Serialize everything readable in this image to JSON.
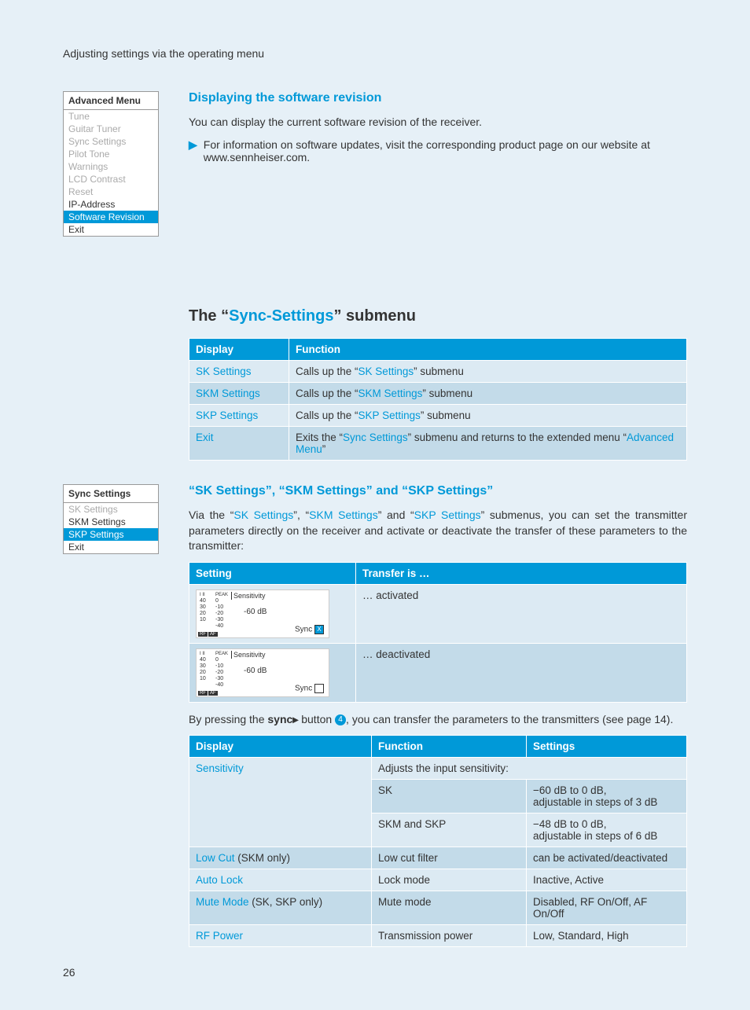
{
  "colors": {
    "page_bg": "#e6f0f7",
    "accent": "#0099d8",
    "row_odd": "#dceaf3",
    "row_even": "#c3dbe9",
    "text": "#333333",
    "muted": "#aaaaaa",
    "white": "#ffffff"
  },
  "header": {
    "title": "Adjusting settings via the operating menu"
  },
  "advanced_menu": {
    "title": "Advanced Menu",
    "items": [
      "Tune",
      "Guitar Tuner",
      "Sync Settings",
      "Pilot Tone",
      "Warnings",
      "LCD Contrast",
      "Reset",
      "IP-Address",
      "Software Revision",
      "Exit"
    ],
    "dim_end": 7,
    "highlight_index": 8
  },
  "software_rev": {
    "heading": "Displaying the software revision",
    "p1": "You can display the current software revision of the receiver.",
    "bullet": "For information on software updates, visit the corresponding product page on our website at www.sennheiser.com."
  },
  "sync_submenu": {
    "title_pre": "The “",
    "title_link": "Sync-Settings",
    "title_post": "” submenu",
    "th_display": "Display",
    "th_function": "Function",
    "rows": [
      {
        "display": "SK Settings",
        "func_pre": "Calls up the “",
        "func_link": "SK Settings",
        "func_post": "” submenu"
      },
      {
        "display": "SKM Settings",
        "func_pre": "Calls up the “",
        "func_link": "SKM Settings",
        "func_post": "” submenu"
      },
      {
        "display": "SKP Settings",
        "func_pre": "Calls up the “",
        "func_link": "SKP Settings",
        "func_post": "” submenu"
      },
      {
        "display": "Exit",
        "func_pre": "Exits the “",
        "func_link": "Sync Settings",
        "func_post": "” submenu and returns to the extended menu “",
        "func_link2": "Advanced Menu",
        "func_post2": "”"
      }
    ]
  },
  "sync_menu_box": {
    "title": "Sync Settings",
    "items": [
      "SK Settings",
      "SKM Settings",
      "SKP Settings",
      "Exit"
    ],
    "dim_end": 0,
    "highlight_index": 2
  },
  "sk_section": {
    "heading": "“SK Settings”, “SKM Settings” and “SKP Settings”",
    "p1_pre": "Via the “",
    "p1_l1": "SK Settings",
    "p1_m1": "”, “",
    "p1_l2": "SKM Settings",
    "p1_m2": "” and “",
    "p1_l3": "SKP Settings",
    "p1_post": "” submenus, you can set the transmitter parameters directly on the receiver and activate or deactivate the transfer of these parameters to the transmitter:"
  },
  "transfer_table": {
    "th_setting": "Setting",
    "th_transfer": "Transfer is …",
    "rows": [
      {
        "transfer": "… activated",
        "checked": true
      },
      {
        "transfer": "… deactivated",
        "checked": false
      }
    ]
  },
  "lcd": {
    "col1_top": "I  II",
    "col1": "40\n30\n20\n10",
    "col2_top": "PEAK",
    "col2": "0\n-10\n-20\n-30\n-40",
    "sens_label": "Sensitivity",
    "sens_val": "-60 dB",
    "sync_label": "Sync",
    "rf": "RF",
    "af": "AF"
  },
  "sync_button_text": {
    "pre": "By pressing the ",
    "sync_word": "sync",
    "mid": " button ",
    "circle": "4",
    "post": ", you can transfer the parameters to the transmitters (see page 14)."
  },
  "settings_table": {
    "th_display": "Display",
    "th_function": "Function",
    "th_settings": "Settings",
    "rows": [
      {
        "display": "Sensitivity",
        "note": "",
        "func_span": "Adjusts the input sensitivity:"
      },
      {
        "display": "",
        "func": "SK",
        "settings": "−60 dB to 0 dB,\nadjustable in steps of 3 dB"
      },
      {
        "display": "",
        "func": "SKM and SKP",
        "settings": "−48 dB to 0 dB,\nadjustable in steps of 6 dB"
      },
      {
        "display": "Low Cut",
        "note": " (SKM only)",
        "func": "Low cut filter",
        "settings": "can be activated/deactivated"
      },
      {
        "display": "Auto Lock",
        "note": "",
        "func": "Lock mode",
        "settings": "Inactive, Active"
      },
      {
        "display": "Mute Mode",
        "note": " (SK, SKP only)",
        "func": "Mute mode",
        "settings": "Disabled, RF On/Off, AF On/Off"
      },
      {
        "display": "RF Power",
        "note": "",
        "func": "Transmission power",
        "settings": "Low, Standard, High"
      }
    ]
  },
  "page_number": "26"
}
